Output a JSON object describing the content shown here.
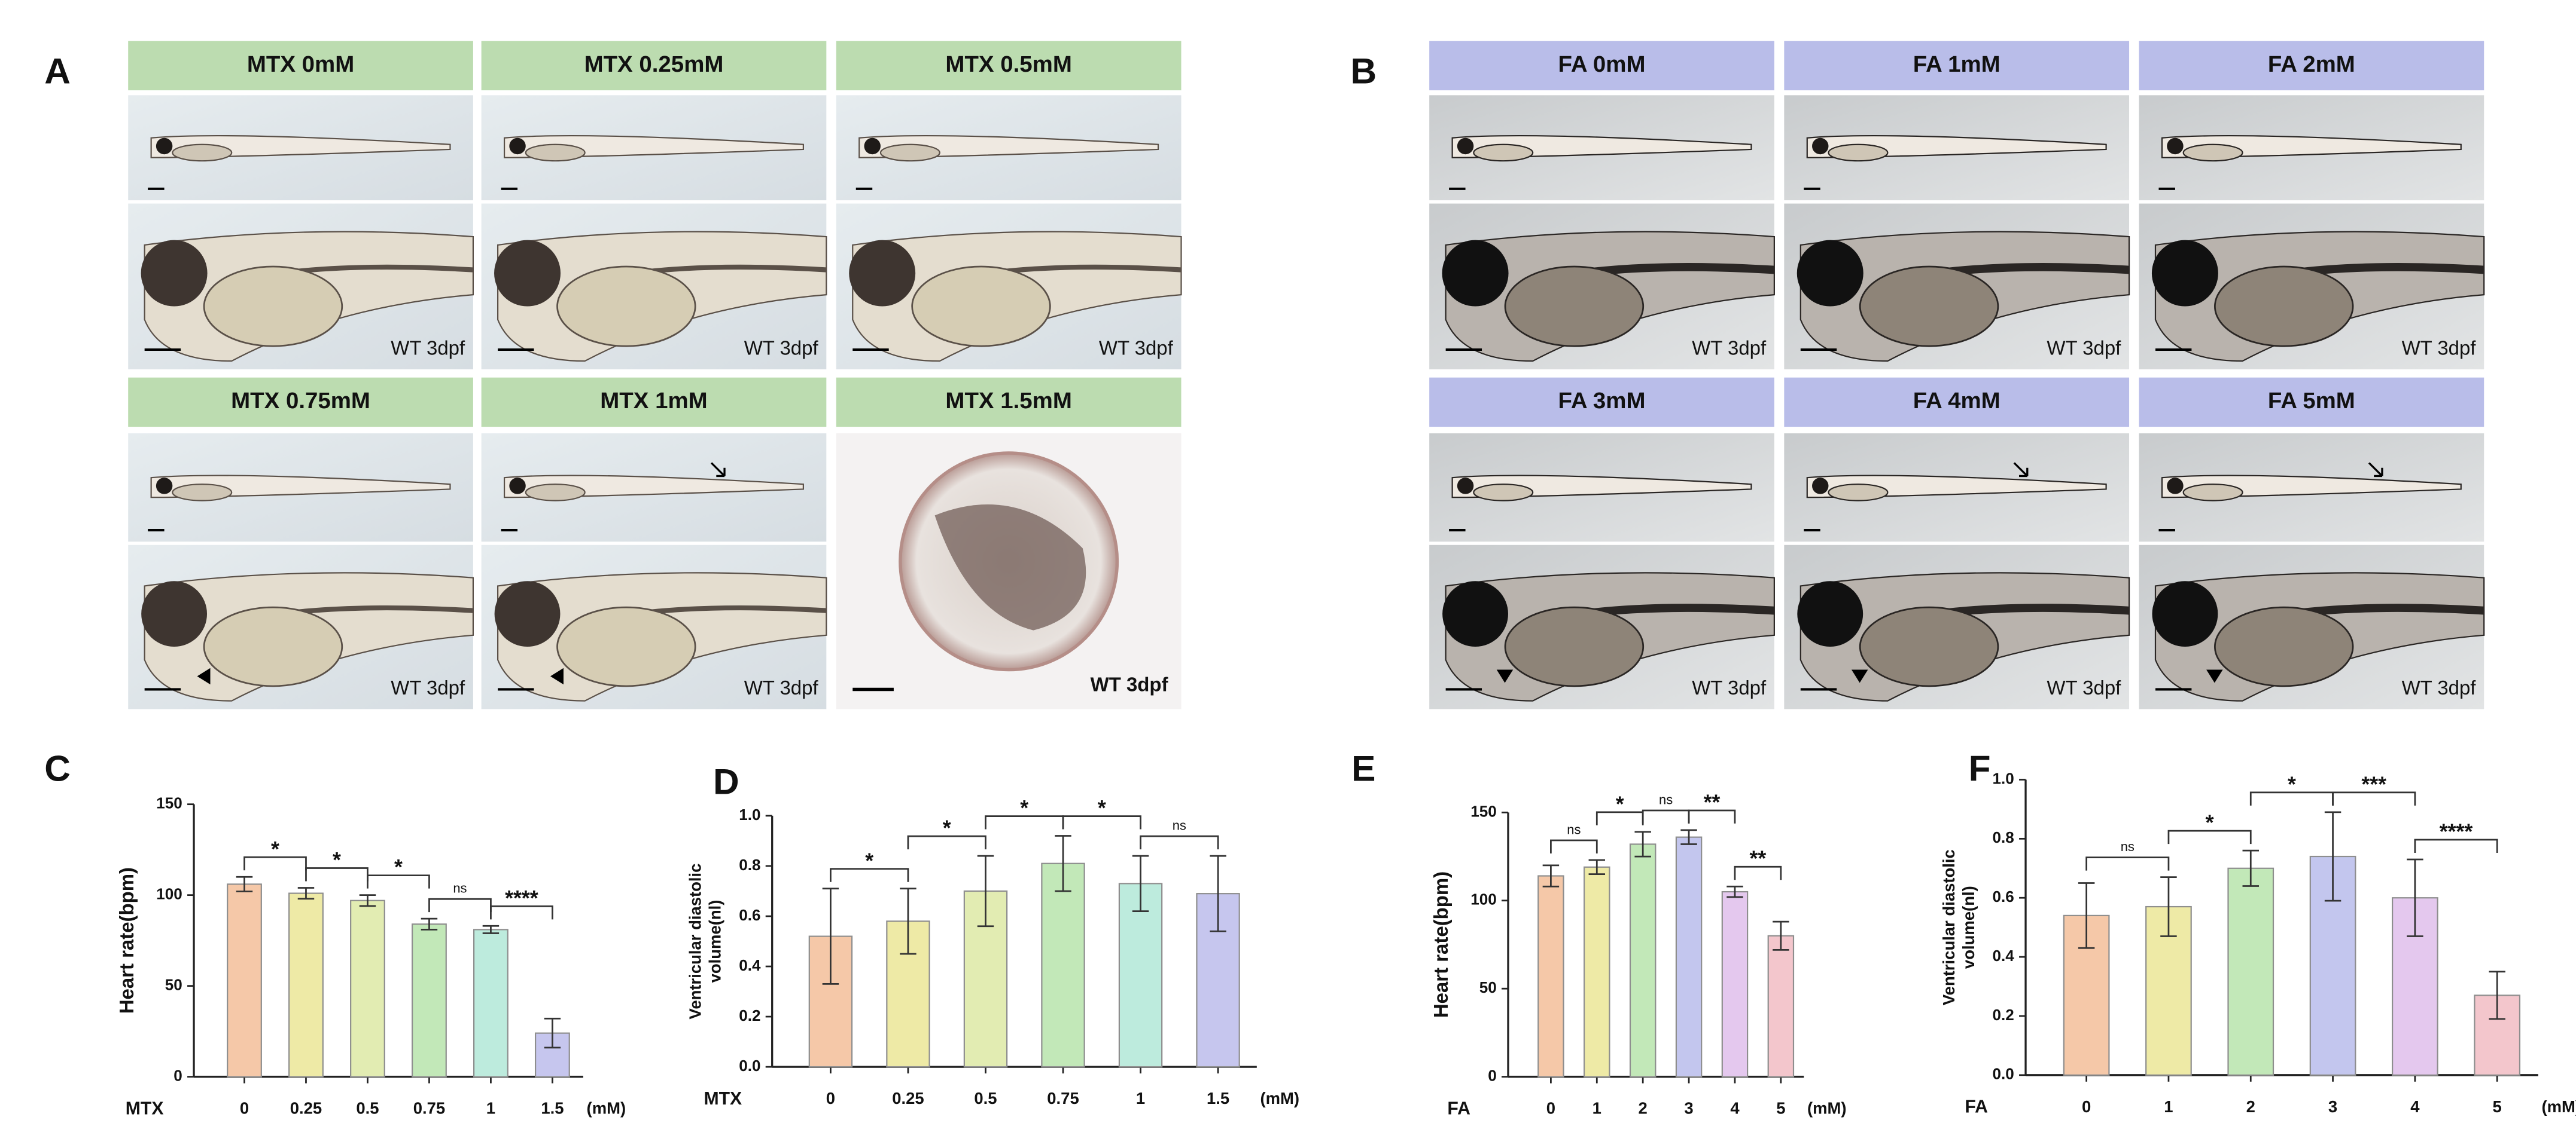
{
  "panels": [
    {
      "label": "A",
      "images": [
        {
          "title": "MTX 0mM",
          "caption": "WT 3dpf"
        },
        {
          "title": "MTX 0.25mM",
          "caption": "WT 3dpf"
        },
        {
          "title": "MTX 0.5mM",
          "caption": "WT 3dpf"
        },
        {
          "title": "MTX 0.75mM",
          "caption": "WT 3dpf"
        },
        {
          "title": "MTX 1mM",
          "caption": "WT 3dpf"
        },
        {
          "title": "MTX 1.5mM",
          "caption": "WT 3dpf"
        }
      ]
    },
    {
      "label": "B",
      "images": [
        {
          "title": "FA 0mM",
          "caption": "WT 3dpf"
        },
        {
          "title": "FA 1mM",
          "caption": "WT 3dpf"
        },
        {
          "title": "FA 2mM",
          "caption": "WT 3dpf"
        },
        {
          "title": "FA 3mM",
          "caption": "WT 3dpf"
        },
        {
          "title": "FA 4mM",
          "caption": "WT 3dpf"
        },
        {
          "title": "FA 5mM",
          "caption": "WT 3dpf"
        }
      ]
    }
  ],
  "chart_data": [
    {
      "type": "bar",
      "panel": "C",
      "ylabel": [
        "Heart rate(bpm)"
      ],
      "xlabel": "MTX",
      "xunit": "(mM)",
      "categories": [
        "0",
        "0.25",
        "0.5",
        "0.75",
        "1",
        "1.5"
      ],
      "values": [
        106,
        101,
        97,
        84,
        81,
        24
      ],
      "errors": [
        4,
        3,
        3,
        3,
        2,
        8
      ],
      "colors": [
        "#f5c8a8",
        "#eeeaa6",
        "#e2ecb2",
        "#c2e8b8",
        "#bdebdd",
        "#c6c6ee"
      ],
      "significance": [
        "*",
        "*",
        "*",
        "ns",
        "****"
      ],
      "ylim": [
        0,
        150
      ],
      "yticks": [
        0,
        50,
        100,
        150
      ]
    },
    {
      "type": "bar",
      "panel": "D",
      "ylabel": [
        "Ventricular diastolic",
        "volume(nl)"
      ],
      "xlabel": "MTX",
      "xunit": "(mM)",
      "categories": [
        "0",
        "0.25",
        "0.5",
        "0.75",
        "1",
        "1.5"
      ],
      "values": [
        0.52,
        0.58,
        0.7,
        0.81,
        0.73,
        0.69
      ],
      "errors": [
        0.19,
        0.13,
        0.14,
        0.11,
        0.11,
        0.15
      ],
      "colors": [
        "#f5c8a8",
        "#eeeaa6",
        "#e2ecb2",
        "#c2e8b8",
        "#bdebdd",
        "#c6c6ee"
      ],
      "significance": [
        "*",
        "*",
        "*",
        "*",
        "ns"
      ],
      "ylim": [
        0,
        1
      ],
      "yticks": [
        {
          "value": 0,
          "label": "0.0"
        },
        0.2,
        0.4,
        0.6,
        0.8,
        {
          "value": 1,
          "label": "1.0"
        }
      ]
    },
    {
      "type": "bar",
      "panel": "E",
      "ylabel": [
        "Heart rate(bpm)"
      ],
      "xlabel": "FA",
      "xunit": "(mM)",
      "categories": [
        "0",
        "1",
        "2",
        "3",
        "4",
        "5"
      ],
      "values": [
        114,
        119,
        132,
        136,
        105,
        80
      ],
      "errors": [
        6,
        4,
        7,
        4,
        3,
        8
      ],
      "colors": [
        "#f5c8a8",
        "#eeeaa6",
        "#c2e8b8",
        "#c3c6ee",
        "#e4c8ee",
        "#f3c6cc"
      ],
      "significance": [
        "ns",
        "*",
        "ns",
        "**",
        "**"
      ],
      "ylim": [
        0,
        150
      ],
      "yticks": [
        0,
        50,
        100,
        150
      ]
    },
    {
      "type": "bar",
      "panel": "F",
      "ylabel": [
        "Ventricular diastolic",
        "volume(nl)"
      ],
      "xlabel": "FA",
      "xunit": "(mM)",
      "categories": [
        "0",
        "1",
        "2",
        "3",
        "4",
        "5"
      ],
      "values": [
        0.54,
        0.57,
        0.7,
        0.74,
        0.6,
        0.27
      ],
      "errors": [
        0.11,
        0.1,
        0.06,
        0.15,
        0.13,
        0.08
      ],
      "colors": [
        "#f5c8a8",
        "#eeeaa6",
        "#c2e8b8",
        "#c3c6ee",
        "#e4c8ee",
        "#f3c6cc"
      ],
      "significance": [
        "ns",
        "*",
        "*",
        "***",
        "****"
      ],
      "ylim": [
        0,
        1
      ],
      "yticks": [
        {
          "value": 0,
          "label": "0.0"
        },
        0.2,
        0.4,
        0.6,
        0.8,
        {
          "value": 1,
          "label": "1.0"
        }
      ]
    }
  ]
}
